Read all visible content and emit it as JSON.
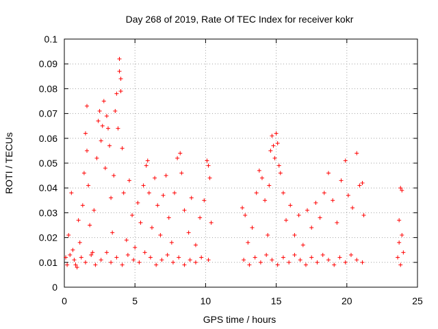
{
  "chart_data": {
    "type": "scatter",
    "title": "Day 268 of 2019, Rate Of TEC Index for receiver kokr",
    "xlabel": "GPS time / hours",
    "ylabel": "ROTI / TECUs",
    "xlim": [
      0,
      25
    ],
    "ylim": [
      0,
      0.1
    ],
    "xticks": [
      0,
      5,
      10,
      15,
      20,
      25
    ],
    "xtick_labels": [
      "0",
      "5",
      "10",
      "15",
      "20",
      "25"
    ],
    "yticks": [
      0,
      0.01,
      0.02,
      0.03,
      0.04,
      0.05,
      0.06,
      0.07,
      0.08,
      0.09,
      0.1
    ],
    "ytick_labels": [
      "0",
      "0.01",
      "0.02",
      "0.03",
      "0.04",
      "0.05",
      "0.06",
      "0.07",
      "0.08",
      "0.09",
      "0.1"
    ],
    "grid": true,
    "marker": "+",
    "color": "#ff0000",
    "series": [
      {
        "name": "ROTI",
        "points": [
          [
            0.1,
            0.012
          ],
          [
            0.3,
            0.021
          ],
          [
            0.5,
            0.038
          ],
          [
            0.6,
            0.015
          ],
          [
            0.8,
            0.009
          ],
          [
            1.0,
            0.027
          ],
          [
            1.1,
            0.018
          ],
          [
            1.3,
            0.033
          ],
          [
            1.4,
            0.046
          ],
          [
            1.5,
            0.062
          ],
          [
            1.6,
            0.073
          ],
          [
            1.6,
            0.055
          ],
          [
            1.7,
            0.041
          ],
          [
            1.8,
            0.025
          ],
          [
            2.0,
            0.014
          ],
          [
            2.1,
            0.031
          ],
          [
            2.3,
            0.052
          ],
          [
            2.4,
            0.067
          ],
          [
            2.5,
            0.071
          ],
          [
            2.6,
            0.059
          ],
          [
            2.7,
            0.065
          ],
          [
            2.8,
            0.075
          ],
          [
            2.9,
            0.048
          ],
          [
            3.0,
            0.069
          ],
          [
            3.1,
            0.064
          ],
          [
            3.2,
            0.057
          ],
          [
            3.3,
            0.036
          ],
          [
            3.4,
            0.022
          ],
          [
            3.5,
            0.045
          ],
          [
            3.6,
            0.071
          ],
          [
            3.7,
            0.078
          ],
          [
            3.8,
            0.064
          ],
          [
            3.9,
            0.092
          ],
          [
            3.9,
            0.087
          ],
          [
            4.0,
            0.084
          ],
          [
            4.0,
            0.079
          ],
          [
            4.1,
            0.056
          ],
          [
            4.2,
            0.038
          ],
          [
            4.4,
            0.019
          ],
          [
            4.6,
            0.043
          ],
          [
            4.8,
            0.029
          ],
          [
            5.0,
            0.016
          ],
          [
            5.2,
            0.034
          ],
          [
            5.4,
            0.026
          ],
          [
            5.6,
            0.041
          ],
          [
            5.8,
            0.049
          ],
          [
            5.9,
            0.051
          ],
          [
            6.0,
            0.038
          ],
          [
            6.2,
            0.024
          ],
          [
            6.4,
            0.044
          ],
          [
            6.6,
            0.033
          ],
          [
            6.8,
            0.021
          ],
          [
            7.0,
            0.037
          ],
          [
            7.2,
            0.045
          ],
          [
            7.4,
            0.028
          ],
          [
            7.6,
            0.018
          ],
          [
            7.8,
            0.038
          ],
          [
            8.0,
            0.052
          ],
          [
            8.2,
            0.054
          ],
          [
            8.3,
            0.046
          ],
          [
            8.5,
            0.031
          ],
          [
            8.8,
            0.022
          ],
          [
            9.0,
            0.036
          ],
          [
            9.3,
            0.017
          ],
          [
            9.6,
            0.028
          ],
          [
            9.9,
            0.035
          ],
          [
            10.1,
            0.051
          ],
          [
            10.2,
            0.049
          ],
          [
            10.3,
            0.044
          ],
          [
            10.4,
            0.026
          ],
          [
            0.2,
            0.009
          ],
          [
            0.4,
            0.013
          ],
          [
            0.7,
            0.011
          ],
          [
            0.9,
            0.008
          ],
          [
            1.2,
            0.012
          ],
          [
            1.5,
            0.01
          ],
          [
            1.9,
            0.013
          ],
          [
            2.2,
            0.009
          ],
          [
            2.6,
            0.011
          ],
          [
            3.0,
            0.014
          ],
          [
            3.3,
            0.01
          ],
          [
            3.7,
            0.012
          ],
          [
            4.1,
            0.009
          ],
          [
            4.5,
            0.013
          ],
          [
            4.9,
            0.011
          ],
          [
            5.3,
            0.01
          ],
          [
            5.7,
            0.014
          ],
          [
            6.1,
            0.012
          ],
          [
            6.5,
            0.009
          ],
          [
            6.9,
            0.011
          ],
          [
            7.3,
            0.013
          ],
          [
            7.7,
            0.01
          ],
          [
            8.1,
            0.012
          ],
          [
            8.5,
            0.009
          ],
          [
            8.9,
            0.011
          ],
          [
            9.3,
            0.01
          ],
          [
            9.7,
            0.012
          ],
          [
            10.2,
            0.011
          ],
          [
            12.6,
            0.032
          ],
          [
            12.8,
            0.029
          ],
          [
            13.0,
            0.018
          ],
          [
            13.3,
            0.024
          ],
          [
            13.6,
            0.038
          ],
          [
            13.8,
            0.047
          ],
          [
            14.0,
            0.044
          ],
          [
            14.2,
            0.035
          ],
          [
            14.4,
            0.021
          ],
          [
            14.5,
            0.041
          ],
          [
            14.6,
            0.055
          ],
          [
            14.7,
            0.061
          ],
          [
            14.8,
            0.057
          ],
          [
            14.9,
            0.052
          ],
          [
            15.0,
            0.062
          ],
          [
            15.1,
            0.058
          ],
          [
            15.2,
            0.049
          ],
          [
            15.3,
            0.046
          ],
          [
            15.5,
            0.038
          ],
          [
            15.7,
            0.027
          ],
          [
            16.0,
            0.033
          ],
          [
            16.3,
            0.021
          ],
          [
            16.6,
            0.029
          ],
          [
            16.9,
            0.017
          ],
          [
            17.2,
            0.031
          ],
          [
            17.5,
            0.024
          ],
          [
            17.8,
            0.034
          ],
          [
            18.1,
            0.028
          ],
          [
            18.4,
            0.038
          ],
          [
            18.7,
            0.046
          ],
          [
            19.0,
            0.035
          ],
          [
            19.3,
            0.026
          ],
          [
            19.6,
            0.043
          ],
          [
            19.9,
            0.051
          ],
          [
            20.1,
            0.037
          ],
          [
            20.4,
            0.032
          ],
          [
            20.7,
            0.054
          ],
          [
            20.9,
            0.041
          ],
          [
            21.1,
            0.042
          ],
          [
            21.2,
            0.029
          ],
          [
            12.7,
            0.011
          ],
          [
            13.1,
            0.009
          ],
          [
            13.5,
            0.012
          ],
          [
            13.9,
            0.01
          ],
          [
            14.3,
            0.013
          ],
          [
            14.7,
            0.011
          ],
          [
            15.1,
            0.009
          ],
          [
            15.5,
            0.012
          ],
          [
            15.9,
            0.01
          ],
          [
            16.3,
            0.013
          ],
          [
            16.7,
            0.011
          ],
          [
            17.1,
            0.009
          ],
          [
            17.5,
            0.012
          ],
          [
            17.9,
            0.01
          ],
          [
            18.3,
            0.013
          ],
          [
            18.7,
            0.011
          ],
          [
            19.1,
            0.009
          ],
          [
            19.5,
            0.012
          ],
          [
            19.9,
            0.01
          ],
          [
            20.3,
            0.013
          ],
          [
            20.7,
            0.011
          ],
          [
            21.1,
            0.01
          ],
          [
            23.6,
            0.012
          ],
          [
            23.7,
            0.027
          ],
          [
            23.7,
            0.018
          ],
          [
            23.8,
            0.04
          ],
          [
            23.8,
            0.009
          ],
          [
            23.9,
            0.039
          ],
          [
            23.9,
            0.021
          ],
          [
            24.0,
            0.014
          ]
        ]
      }
    ]
  }
}
